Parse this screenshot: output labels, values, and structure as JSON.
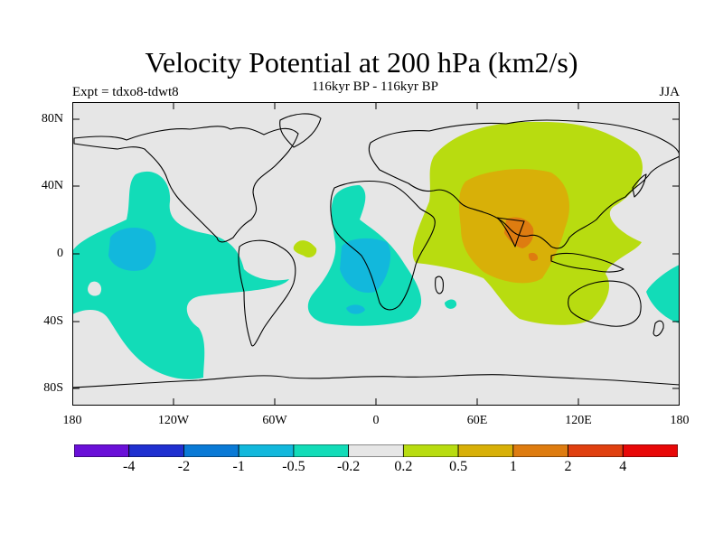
{
  "title": "Velocity Potential at 200 hPa (km2/s)",
  "subtitle": "116kyr BP - 116kyr BP",
  "left_label": "Expt = tdxo8-tdwt8",
  "right_label": "JJA",
  "lat_ticks": [
    "80N",
    "40N",
    "0",
    "40S",
    "80S"
  ],
  "lon_ticks": [
    "180",
    "120W",
    "60W",
    "0",
    "60E",
    "120E",
    "180"
  ],
  "colorbar": {
    "colors": [
      "#6a10d8",
      "#2030d0",
      "#0a7ad6",
      "#12b8dc",
      "#12dcb8",
      "#e6e6e6",
      "#b8dc10",
      "#d8b008",
      "#de7c10",
      "#e04010",
      "#e80808"
    ],
    "labels": [
      "-4",
      "-2",
      "-1",
      "-0.5",
      "-0.2",
      "0.2",
      "0.5",
      "1",
      "2",
      "4"
    ]
  },
  "colors": {
    "land_background": "#e6e6e6",
    "neg_0_2_to_0_5": "#12dcb8",
    "neg_0_5_to_1": "#12b8dc",
    "pos_0_2_to_0_5": "#b8dc10",
    "pos_0_5_to_1": "#d8b008",
    "pos_1_to_2": "#de7c10"
  }
}
